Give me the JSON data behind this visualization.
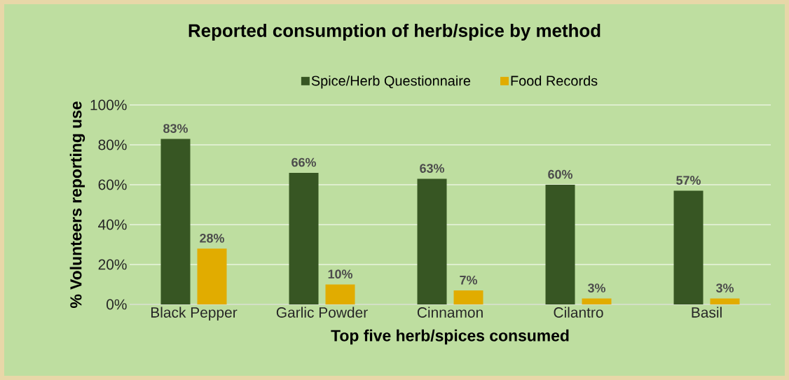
{
  "chart_data": {
    "type": "bar",
    "title": "Reported consumption of herb/spice by method",
    "xlabel": "Top five herb/spices consumed",
    "ylabel": "% Volunteers reporting use",
    "categories": [
      "Black Pepper",
      "Garlic Powder",
      "Cinnamon",
      "Cilantro",
      "Basil"
    ],
    "series": [
      {
        "name": "Spice/Herb Questionnaire",
        "color": "#375623",
        "values": [
          83,
          66,
          63,
          60,
          57
        ],
        "value_labels": [
          "83%",
          "66%",
          "63%",
          "60%",
          "57%"
        ]
      },
      {
        "name": "Food Records",
        "color": "#e1ac00",
        "values": [
          28,
          10,
          7,
          3,
          3
        ],
        "value_labels": [
          "28%",
          "10%",
          "7%",
          "3%",
          "3%"
        ]
      }
    ],
    "ylim": [
      0,
      100
    ],
    "yticks": [
      {
        "value": 0,
        "label": "0%"
      },
      {
        "value": 20,
        "label": "20%"
      },
      {
        "value": 40,
        "label": "40%"
      },
      {
        "value": 60,
        "label": "60%"
      },
      {
        "value": 80,
        "label": "80%"
      },
      {
        "value": 100,
        "label": "100%"
      }
    ],
    "grid": "y",
    "legend": "top"
  }
}
